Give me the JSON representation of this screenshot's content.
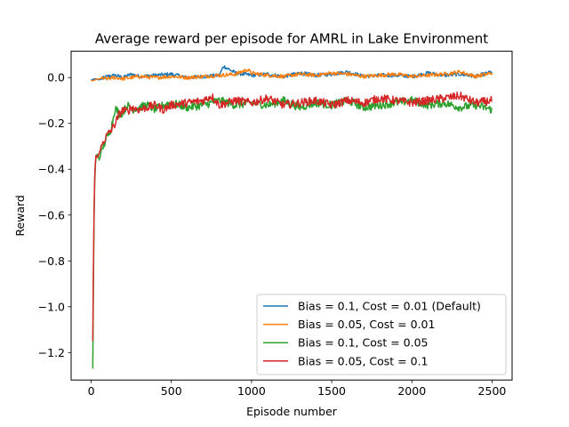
{
  "chart_data": {
    "type": "line",
    "title": "Average reward per episode for AMRL in Lake Environment",
    "xlabel": "Episode number",
    "ylabel": "Reward",
    "xlim": [
      -125,
      2625
    ],
    "ylim": [
      -1.32,
      0.115
    ],
    "xticks": [
      0,
      500,
      1000,
      1500,
      2000,
      2500
    ],
    "xtick_labels": [
      "0",
      "500",
      "1000",
      "1500",
      "2000",
      "2500"
    ],
    "yticks": [
      0.0,
      -0.2,
      -0.4,
      -0.6,
      -0.8,
      -1.0,
      -1.2
    ],
    "ytick_labels": [
      "0.0",
      "−0.2",
      "−0.4",
      "−0.6",
      "−0.8",
      "−1.0",
      "−1.2"
    ],
    "grid": false,
    "legend_position": "lower-right",
    "series": [
      {
        "name": "Bias = 0.1, Cost = 0.01 (Default)",
        "color": "#1f77b4",
        "x": [
          0,
          25,
          50,
          100,
          150,
          200,
          250,
          300,
          400,
          500,
          600,
          700,
          800,
          825,
          900,
          1000,
          1100,
          1200,
          1300,
          1400,
          1500,
          1600,
          1700,
          1800,
          1900,
          2000,
          2100,
          2200,
          2300,
          2400,
          2500
        ],
        "y": [
          -0.01,
          -0.005,
          -0.01,
          0.005,
          0.01,
          0.0,
          0.015,
          0.005,
          0.01,
          0.015,
          0.0,
          0.005,
          0.01,
          0.05,
          0.02,
          0.01,
          0.015,
          0.005,
          0.02,
          0.01,
          0.015,
          0.025,
          0.005,
          0.01,
          0.01,
          0.005,
          0.02,
          0.01,
          0.015,
          0.005,
          0.025
        ]
      },
      {
        "name": "Bias = 0.05, Cost = 0.01",
        "color": "#ff7f0e",
        "x": [
          0,
          25,
          50,
          100,
          150,
          200,
          250,
          300,
          400,
          500,
          600,
          700,
          800,
          900,
          975,
          1000,
          1100,
          1200,
          1300,
          1400,
          1500,
          1600,
          1700,
          1800,
          1900,
          2000,
          2100,
          2200,
          2300,
          2400,
          2500
        ],
        "y": [
          -0.015,
          -0.01,
          -0.005,
          -0.005,
          0.0,
          -0.005,
          0.0,
          0.005,
          0.0,
          0.005,
          0.0,
          0.005,
          0.01,
          0.015,
          0.035,
          0.02,
          0.01,
          0.005,
          0.015,
          0.01,
          0.02,
          0.015,
          0.005,
          0.01,
          0.015,
          0.005,
          0.01,
          0.015,
          0.025,
          0.005,
          0.02
        ]
      },
      {
        "name": "Bias = 0.1, Cost = 0.05",
        "color": "#2ca02c",
        "x": [
          10,
          15,
          20,
          25,
          30,
          40,
          50,
          75,
          100,
          125,
          150,
          175,
          200,
          225,
          250,
          300,
          350,
          400,
          450,
          500,
          600,
          700,
          800,
          900,
          1000,
          1100,
          1200,
          1300,
          1400,
          1500,
          1600,
          1700,
          1800,
          1900,
          2000,
          2100,
          2200,
          2300,
          2400,
          2500
        ],
        "y": [
          -1.27,
          -0.8,
          -0.5,
          -0.4,
          -0.35,
          -0.33,
          -0.36,
          -0.3,
          -0.26,
          -0.22,
          -0.13,
          -0.16,
          -0.15,
          -0.12,
          -0.14,
          -0.13,
          -0.12,
          -0.14,
          -0.12,
          -0.11,
          -0.13,
          -0.12,
          -0.1,
          -0.12,
          -0.11,
          -0.12,
          -0.1,
          -0.13,
          -0.11,
          -0.12,
          -0.1,
          -0.13,
          -0.12,
          -0.11,
          -0.1,
          -0.12,
          -0.11,
          -0.13,
          -0.12,
          -0.14
        ]
      },
      {
        "name": "Bias = 0.05, Cost = 0.1",
        "color": "#d62728",
        "x": [
          10,
          15,
          20,
          25,
          30,
          40,
          50,
          75,
          100,
          125,
          150,
          175,
          200,
          225,
          250,
          300,
          350,
          400,
          450,
          500,
          600,
          700,
          750,
          800,
          900,
          1000,
          1100,
          1200,
          1300,
          1400,
          1500,
          1600,
          1700,
          1800,
          1900,
          2000,
          2100,
          2200,
          2300,
          2400,
          2500
        ],
        "y": [
          -1.15,
          -0.75,
          -0.48,
          -0.38,
          -0.34,
          -0.35,
          -0.33,
          -0.28,
          -0.25,
          -0.23,
          -0.2,
          -0.16,
          -0.14,
          -0.15,
          -0.13,
          -0.14,
          -0.13,
          -0.12,
          -0.14,
          -0.12,
          -0.11,
          -0.1,
          -0.08,
          -0.12,
          -0.1,
          -0.11,
          -0.09,
          -0.12,
          -0.11,
          -0.1,
          -0.12,
          -0.1,
          -0.11,
          -0.09,
          -0.1,
          -0.11,
          -0.1,
          -0.09,
          -0.08,
          -0.11,
          -0.1
        ]
      }
    ]
  }
}
